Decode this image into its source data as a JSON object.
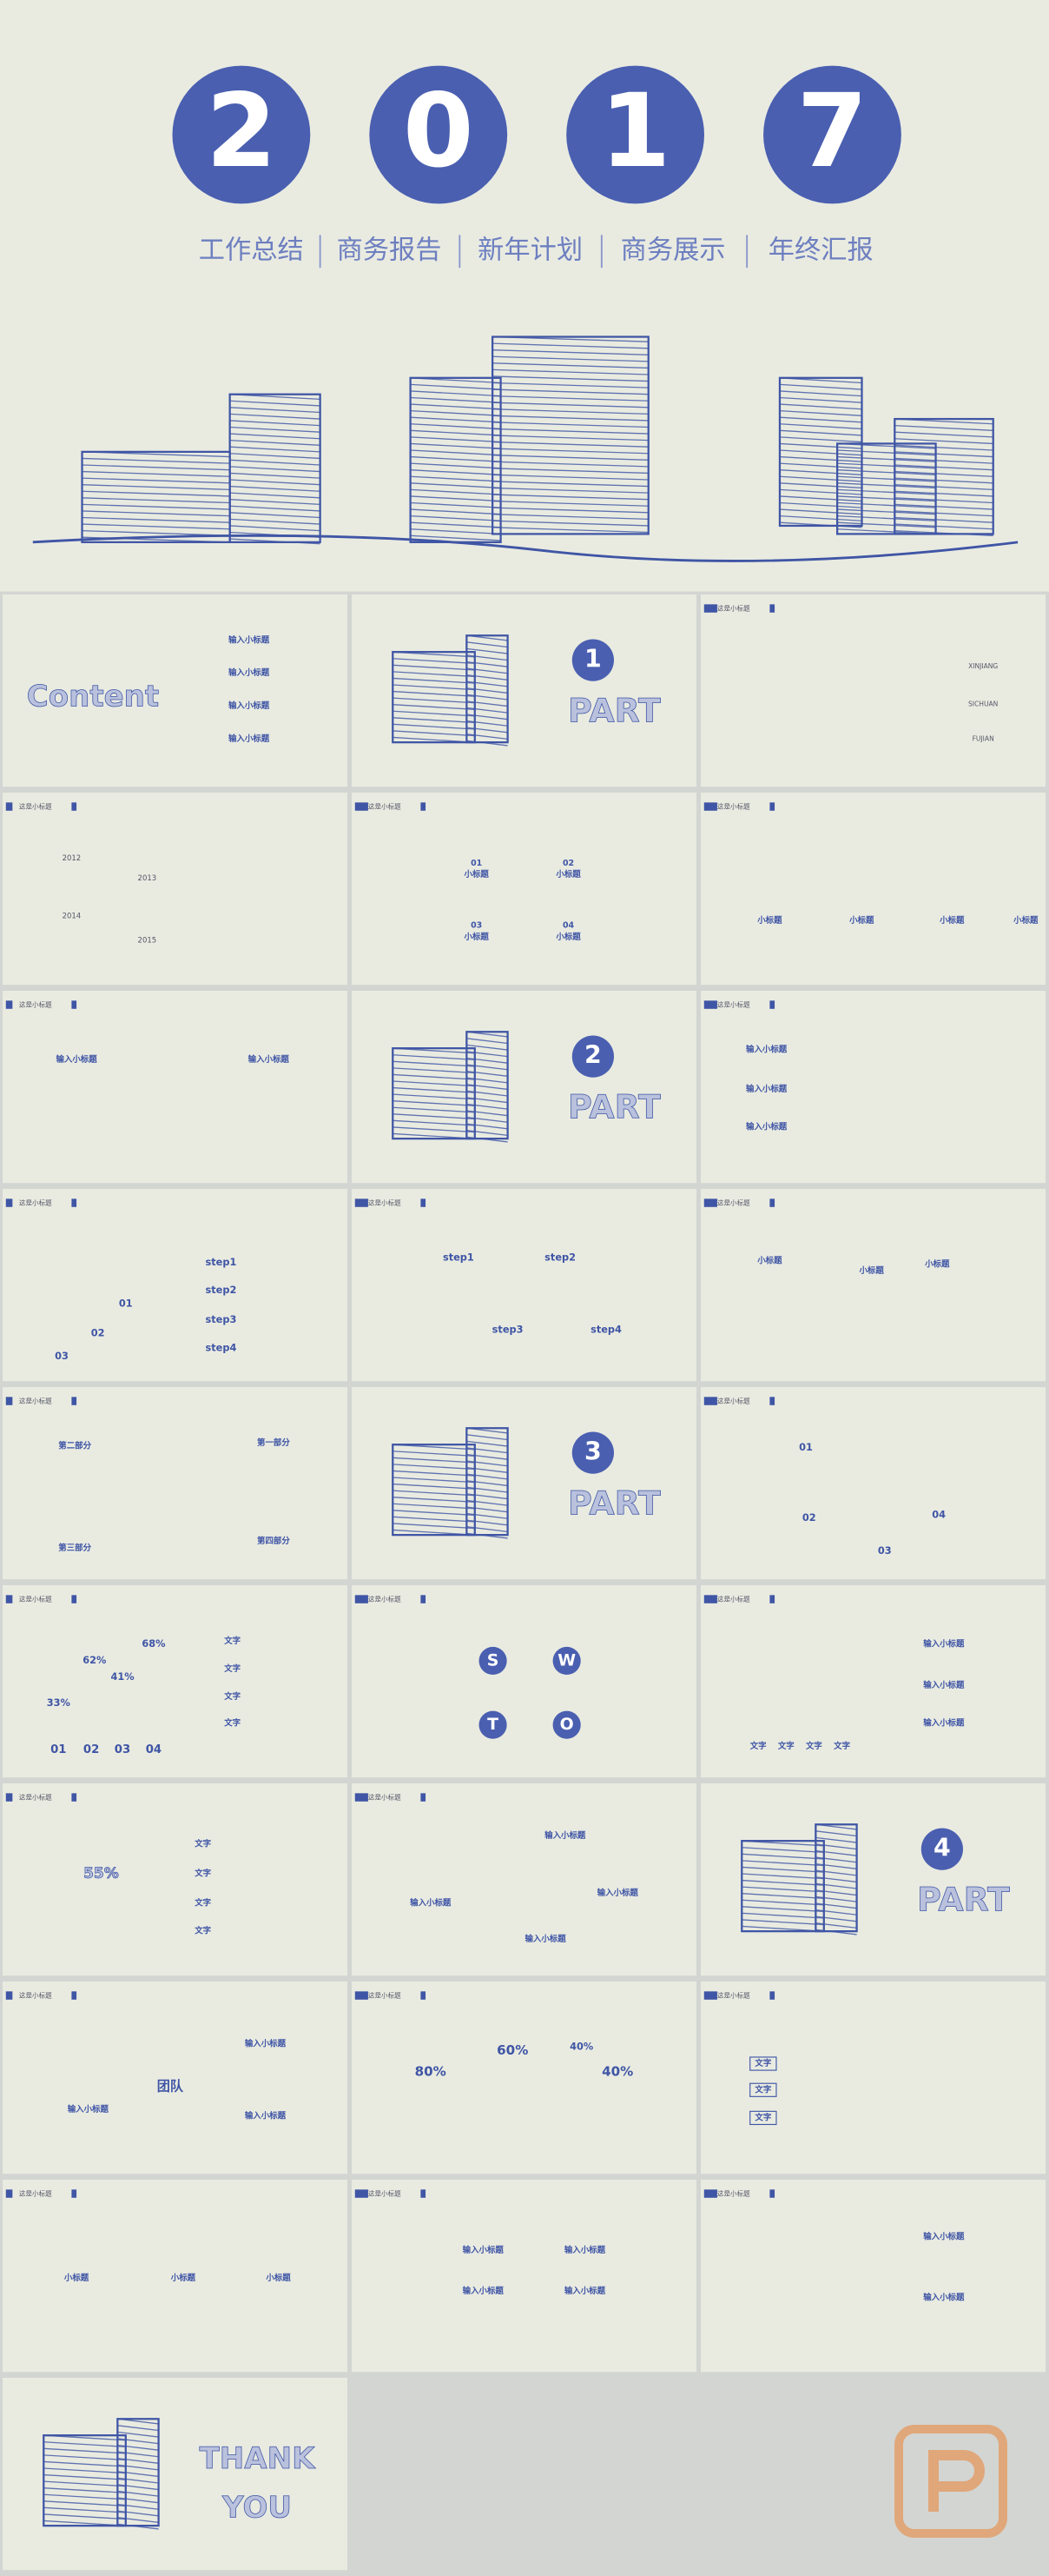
{
  "hero": {
    "digits": [
      "2",
      "0",
      "1",
      "7"
    ],
    "subtitle": [
      "工作总结",
      "商务报告",
      "新年计划",
      "商务展示",
      "年终汇报"
    ]
  },
  "slides": [
    {
      "texts": [
        "Content",
        "输入小标题",
        "输入小标题",
        "输入小标题",
        "输入小标题"
      ]
    },
    {
      "texts": [
        "1",
        "PART"
      ]
    },
    {
      "header": "这是小标题",
      "texts": [
        "XINJIANG",
        "SICHUAN",
        "FUJIAN"
      ]
    },
    {
      "header": "这是小标题",
      "texts": [
        "2012",
        "2013",
        "2014",
        "2015"
      ]
    },
    {
      "header": "这是小标题",
      "texts": [
        "01",
        "小标题",
        "02",
        "小标题",
        "03",
        "小标题",
        "04",
        "小标题"
      ]
    },
    {
      "header": "这是小标题",
      "texts": [
        "小标题",
        "小标题",
        "小标题",
        "小标题"
      ]
    },
    {
      "header": "这是小标题",
      "texts": [
        "输入小标题",
        "输入小标题"
      ]
    },
    {
      "texts": [
        "2",
        "PART"
      ]
    },
    {
      "header": "这是小标题",
      "texts": [
        "输入小标题",
        "输入小标题",
        "输入小标题"
      ]
    },
    {
      "header": "这是小标题",
      "texts": [
        "01",
        "02",
        "03",
        "step1",
        "step2",
        "step3",
        "step4"
      ]
    },
    {
      "header": "这是小标题",
      "texts": [
        "step1",
        "step2",
        "step3",
        "step4"
      ]
    },
    {
      "header": "这是小标题",
      "texts": [
        "小标题",
        "小标题",
        "小标题"
      ]
    },
    {
      "header": "这是小标题",
      "texts": [
        "第二部分",
        "第一部分",
        "第三部分",
        "第四部分"
      ]
    },
    {
      "texts": [
        "3",
        "PART"
      ]
    },
    {
      "header": "这是小标题",
      "texts": [
        "01",
        "02",
        "03",
        "04"
      ]
    },
    {
      "header": "这是小标题",
      "texts": [
        "33%",
        "62%",
        "41%",
        "68%",
        "01",
        "02",
        "03",
        "04",
        "文字",
        "文字",
        "文字",
        "文字"
      ]
    },
    {
      "header": "这是小标题",
      "texts": [
        "S",
        "W",
        "T",
        "O"
      ]
    },
    {
      "header": "这是小标题",
      "texts": [
        "输入小标题",
        "输入小标题",
        "输入小标题",
        "文字",
        "文字",
        "文字",
        "文字"
      ]
    },
    {
      "header": "这是小标题",
      "texts": [
        "55%",
        "文字",
        "文字",
        "文字",
        "文字"
      ]
    },
    {
      "header": "这是小标题",
      "texts": [
        "输入小标题",
        "输入小标题",
        "输入小标题",
        "输入小标题"
      ]
    },
    {
      "texts": [
        "4",
        "PART"
      ]
    },
    {
      "header": "这是小标题",
      "texts": [
        "团队",
        "输入小标题",
        "输入小标题",
        "输入小标题"
      ]
    },
    {
      "header": "这是小标题",
      "texts": [
        "80%",
        "60%",
        "40%",
        "40%"
      ]
    },
    {
      "header": "这是小标题",
      "texts": [
        "文字",
        "文字",
        "文字"
      ]
    },
    {
      "header": "这是小标题",
      "texts": [
        "小标题",
        "小标题",
        "小标题"
      ]
    },
    {
      "header": "这是小标题",
      "texts": [
        "输入小标题",
        "输入小标题",
        "输入小标题",
        "输入小标题"
      ]
    },
    {
      "header": "这是小标题",
      "texts": [
        "输入小标题",
        "输入小标题"
      ]
    },
    {
      "texts": [
        "THANK",
        "YOU"
      ]
    }
  ]
}
